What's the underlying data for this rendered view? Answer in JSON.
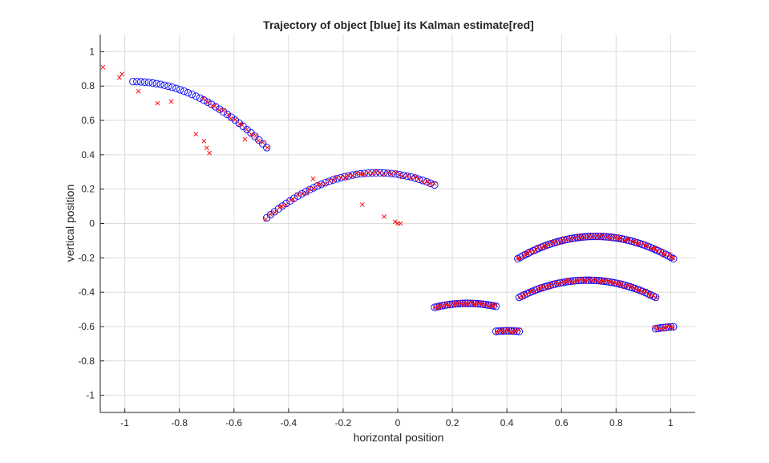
{
  "chart_data": {
    "type": "scatter",
    "title": "Trajectory of object [blue] its Kalman estimate[red]",
    "xlabel": "horizontal position",
    "ylabel": "vertical position",
    "xlim": [
      -1.09,
      1.09
    ],
    "ylim": [
      -1.1,
      1.1
    ],
    "xticks": [
      -1,
      -0.8,
      -0.6,
      -0.4,
      -0.2,
      0,
      0.2,
      0.4,
      0.6,
      0.8,
      1
    ],
    "xtick_labels": [
      "-1",
      "-0.8",
      "-0.6",
      "-0.4",
      "-0.2",
      "0",
      "0.2",
      "0.4",
      "0.6",
      "0.8",
      "1"
    ],
    "yticks": [
      1,
      0.8,
      0.6,
      0.4,
      0.2,
      0,
      -0.2,
      -0.4,
      -0.6,
      -0.8,
      -1
    ],
    "ytick_labels": [
      "1",
      "0.8",
      "0.6",
      "0.4",
      "0.2",
      "0",
      "-0.2",
      "-0.4",
      "-0.6",
      "-0.8",
      "-1"
    ],
    "grid": true,
    "colors": {
      "trajectory": "#0000ff",
      "estimate": "#ff0000",
      "grid": "#dcdcdc",
      "axis": "#262626"
    },
    "trajectory_segments": [
      {
        "x0": -0.97,
        "x1": -0.48,
        "vx": 0.0143,
        "y_peak": 0.826,
        "x_peak": -0.97
      },
      {
        "x0": -0.48,
        "x1": 0.135,
        "vx": 0.0143,
        "y_peak": 0.295,
        "x_peak": -0.075
      },
      {
        "x0": 0.135,
        "x1": 0.36,
        "vx": 0.0095,
        "y_peak": -0.465,
        "x_peak": 0.255
      },
      {
        "x0": 0.36,
        "x1": 0.445,
        "vx": 0.0095,
        "y_peak": -0.625,
        "x_peak": 0.4025
      },
      {
        "x0": 0.445,
        "x1": 0.945,
        "vx": 0.0095,
        "y_peak": -0.33,
        "x_peak": 0.695
      },
      {
        "x0": 0.945,
        "x1": 1.01,
        "vx": 0.0095,
        "y_peak": -0.6,
        "x_peak": 1.035
      },
      {
        "x0": 1.01,
        "x1": 0.44,
        "vx": -0.0095,
        "y_peak": -0.075,
        "x_peak": 0.725
      }
    ],
    "estimate_outliers": [
      [
        -1.08,
        0.91
      ],
      [
        -1.01,
        0.87
      ],
      [
        -1.02,
        0.85
      ],
      [
        -0.95,
        0.77
      ],
      [
        -0.88,
        0.7
      ],
      [
        -0.83,
        0.71
      ],
      [
        -0.74,
        0.52
      ],
      [
        -0.71,
        0.48
      ],
      [
        -0.7,
        0.44
      ],
      [
        -0.69,
        0.41
      ],
      [
        -0.56,
        0.49
      ],
      [
        -0.31,
        0.26
      ],
      [
        -0.13,
        0.11
      ],
      [
        -0.05,
        0.04
      ],
      [
        -0.01,
        0.01
      ],
      [
        0.0,
        0.0
      ],
      [
        0.01,
        0.0
      ]
    ]
  }
}
